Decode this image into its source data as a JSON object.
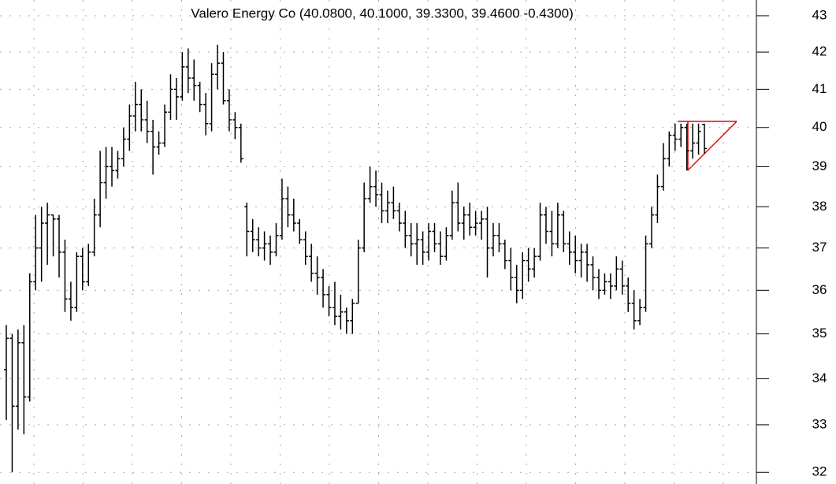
{
  "chart_data": {
    "type": "ohlc",
    "title": "Valero Energy Co (40.0800, 40.1000, 39.3300, 39.4600 -0.4300)",
    "log": true,
    "grid": true,
    "color": "#000000",
    "ylim": [
      31.76,
      43.44
    ],
    "yticks": [
      32,
      33,
      34,
      35,
      36,
      37,
      38,
      39,
      40,
      41,
      42,
      43
    ],
    "values": [
      [
        34.2,
        35.2,
        33.1,
        34.9
      ],
      [
        34.9,
        35.0,
        32.0,
        33.4
      ],
      [
        33.4,
        35.1,
        32.9,
        34.8
      ],
      [
        34.8,
        35.2,
        32.8,
        33.6
      ],
      [
        33.6,
        36.4,
        33.5,
        36.2
      ],
      [
        36.2,
        37.8,
        36.0,
        37.0
      ],
      [
        37.0,
        38.0,
        36.2,
        37.6
      ],
      [
        37.6,
        38.1,
        36.6,
        37.8
      ],
      [
        37.8,
        37.8,
        36.8,
        37.7
      ],
      [
        37.7,
        37.8,
        36.3,
        36.9
      ],
      [
        36.9,
        37.2,
        35.5,
        35.8
      ],
      [
        35.8,
        36.2,
        35.3,
        35.6
      ],
      [
        35.6,
        36.9,
        35.5,
        36.8
      ],
      [
        36.8,
        37.0,
        36.0,
        36.2
      ],
      [
        36.2,
        37.1,
        36.1,
        36.9
      ],
      [
        36.9,
        38.2,
        36.8,
        37.8
      ],
      [
        37.8,
        39.4,
        37.5,
        38.6
      ],
      [
        38.6,
        39.5,
        38.2,
        39.0
      ],
      [
        39.0,
        39.5,
        38.5,
        38.9
      ],
      [
        38.9,
        39.4,
        38.7,
        39.2
      ],
      [
        39.2,
        40.0,
        39.0,
        39.7
      ],
      [
        39.7,
        40.6,
        39.4,
        40.3
      ],
      [
        40.3,
        41.2,
        39.9,
        40.6
      ],
      [
        40.6,
        41.0,
        39.9,
        40.2
      ],
      [
        40.2,
        40.7,
        39.6,
        39.9
      ],
      [
        39.9,
        40.2,
        38.8,
        39.5
      ],
      [
        39.5,
        39.9,
        39.3,
        39.6
      ],
      [
        39.6,
        40.6,
        39.5,
        40.4
      ],
      [
        40.4,
        41.4,
        40.2,
        41.0
      ],
      [
        41.0,
        41.3,
        40.2,
        40.8
      ],
      [
        40.8,
        42.0,
        40.7,
        41.6
      ],
      [
        41.6,
        42.1,
        40.9,
        41.3
      ],
      [
        41.3,
        41.8,
        40.7,
        41.1
      ],
      [
        41.1,
        41.2,
        40.4,
        40.6
      ],
      [
        40.6,
        40.9,
        39.8,
        40.1
      ],
      [
        40.1,
        41.7,
        39.9,
        41.4
      ],
      [
        41.4,
        42.2,
        41.0,
        41.7
      ],
      [
        41.7,
        42.0,
        40.6,
        40.7
      ],
      [
        40.7,
        41.0,
        39.9,
        40.2
      ],
      [
        40.2,
        40.4,
        39.7,
        40.0
      ],
      [
        40.0,
        40.1,
        39.1,
        39.2
      ],
      [
        38.0,
        38.1,
        36.8,
        37.4
      ],
      [
        37.4,
        37.7,
        36.9,
        37.2
      ],
      [
        37.2,
        37.5,
        36.8,
        37.0
      ],
      [
        37.0,
        37.4,
        36.7,
        37.1
      ],
      [
        37.1,
        37.3,
        36.6,
        36.9
      ],
      [
        36.9,
        37.6,
        36.8,
        37.3
      ],
      [
        37.3,
        38.7,
        37.2,
        38.2
      ],
      [
        38.2,
        38.5,
        37.5,
        37.8
      ],
      [
        37.8,
        38.2,
        37.4,
        37.6
      ],
      [
        37.6,
        37.7,
        37.1,
        37.2
      ],
      [
        37.2,
        37.4,
        36.6,
        36.8
      ],
      [
        36.8,
        37.1,
        36.2,
        36.4
      ],
      [
        36.4,
        36.8,
        35.9,
        36.3
      ],
      [
        36.3,
        36.5,
        35.6,
        35.9
      ],
      [
        35.9,
        36.1,
        35.4,
        35.6
      ],
      [
        35.6,
        36.2,
        35.2,
        35.4
      ],
      [
        35.4,
        35.9,
        35.1,
        35.5
      ],
      [
        35.5,
        35.6,
        35.0,
        35.3
      ],
      [
        35.3,
        35.8,
        35.0,
        35.7
      ],
      [
        35.7,
        37.2,
        35.7,
        37.0
      ],
      [
        37.0,
        38.6,
        36.9,
        38.2
      ],
      [
        38.2,
        39.0,
        38.1,
        38.5
      ],
      [
        38.5,
        38.9,
        38.0,
        38.3
      ],
      [
        38.3,
        38.6,
        37.6,
        37.9
      ],
      [
        37.9,
        38.4,
        37.6,
        38.1
      ],
      [
        38.1,
        38.5,
        37.7,
        37.9
      ],
      [
        37.9,
        38.1,
        37.4,
        37.6
      ],
      [
        37.6,
        37.9,
        37.0,
        37.3
      ],
      [
        37.3,
        37.6,
        36.8,
        37.1
      ],
      [
        37.1,
        37.6,
        36.6,
        37.2
      ],
      [
        37.2,
        37.4,
        36.6,
        36.9
      ],
      [
        36.9,
        37.6,
        36.7,
        37.4
      ],
      [
        37.4,
        37.6,
        36.9,
        37.1
      ],
      [
        37.1,
        37.4,
        36.6,
        36.8
      ],
      [
        36.8,
        37.5,
        36.7,
        37.3
      ],
      [
        37.3,
        38.4,
        37.2,
        38.1
      ],
      [
        38.1,
        38.6,
        37.4,
        37.6
      ],
      [
        37.6,
        38.0,
        37.2,
        37.8
      ],
      [
        37.8,
        38.1,
        37.3,
        37.5
      ],
      [
        37.5,
        37.9,
        37.3,
        37.6
      ],
      [
        37.6,
        37.9,
        37.2,
        37.7
      ],
      [
        37.7,
        38.0,
        36.3,
        37.0
      ],
      [
        37.0,
        37.6,
        36.8,
        37.3
      ],
      [
        37.3,
        37.6,
        36.9,
        37.1
      ],
      [
        37.1,
        37.2,
        36.5,
        36.7
      ],
      [
        36.7,
        37.0,
        36.0,
        36.3
      ],
      [
        36.3,
        36.6,
        35.7,
        36.0
      ],
      [
        36.0,
        36.9,
        35.8,
        36.7
      ],
      [
        36.7,
        37.0,
        36.2,
        36.5
      ],
      [
        36.5,
        37.0,
        36.3,
        36.8
      ],
      [
        36.8,
        38.1,
        36.7,
        37.8
      ],
      [
        37.8,
        38.0,
        37.1,
        37.4
      ],
      [
        37.4,
        37.9,
        36.8,
        37.1
      ],
      [
        37.1,
        38.1,
        37.0,
        37.8
      ],
      [
        37.8,
        37.9,
        36.9,
        37.1
      ],
      [
        37.1,
        37.4,
        36.6,
        36.9
      ],
      [
        36.9,
        37.3,
        36.4,
        36.7
      ],
      [
        36.7,
        37.1,
        36.3,
        36.9
      ],
      [
        36.9,
        37.1,
        36.2,
        36.6
      ],
      [
        36.6,
        36.8,
        36.0,
        36.3
      ],
      [
        36.3,
        36.5,
        35.8,
        36.0
      ],
      [
        36.0,
        36.4,
        35.9,
        36.2
      ],
      [
        36.2,
        36.4,
        35.8,
        36.1
      ],
      [
        36.1,
        36.8,
        36.0,
        36.5
      ],
      [
        36.5,
        36.7,
        35.9,
        36.1
      ],
      [
        36.1,
        36.3,
        35.5,
        35.7
      ],
      [
        35.7,
        36.0,
        35.1,
        35.3
      ],
      [
        35.3,
        35.8,
        35.2,
        35.6
      ],
      [
        35.6,
        37.3,
        35.5,
        37.1
      ],
      [
        37.1,
        38.0,
        37.0,
        37.8
      ],
      [
        37.8,
        38.8,
        37.6,
        38.5
      ],
      [
        38.5,
        39.6,
        38.4,
        39.2
      ],
      [
        39.2,
        39.9,
        39.0,
        39.8
      ],
      [
        39.8,
        40.1,
        39.4,
        39.7
      ],
      [
        39.7,
        40.1,
        39.5,
        40.0
      ],
      [
        40.0,
        40.1,
        38.9,
        39.4
      ],
      [
        39.4,
        40.1,
        39.2,
        39.6
      ],
      [
        39.6,
        40.1,
        39.3,
        39.9
      ],
      [
        40.08,
        40.1,
        39.33,
        39.46
      ]
    ]
  }
}
